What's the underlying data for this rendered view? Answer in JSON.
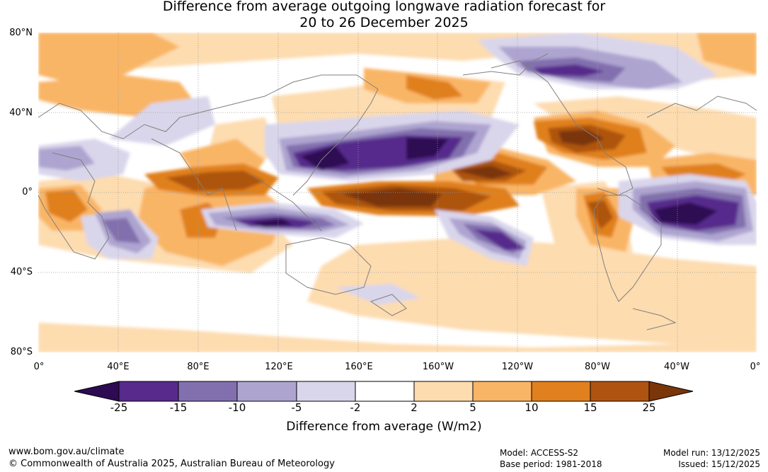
{
  "title": {
    "line1": "Difference from average outgoing longwave radiation forecast for",
    "line2": "20 to 26 December 2025"
  },
  "lat_labels": [
    "80°N",
    "40°N",
    "0°",
    "40°S",
    "80°S"
  ],
  "lon_labels": [
    "0°",
    "40°E",
    "80°E",
    "120°E",
    "160°E",
    "160°W",
    "120°W",
    "80°W",
    "40°W",
    "0°"
  ],
  "colorbar": {
    "ticks": [
      "-25",
      "-15",
      "-10",
      "-5",
      "-2",
      "2",
      "5",
      "10",
      "15",
      "25"
    ],
    "colors": [
      "#2d0a52",
      "#572a8c",
      "#8270ae",
      "#aea4d0",
      "#d9d6eb",
      "#ffffff",
      "#fddcb0",
      "#f9b566",
      "#e0801e",
      "#ae5410",
      "#7a3508"
    ],
    "label": "Difference from average (W/m2)"
  },
  "footer": {
    "url": "www.bom.gov.au/climate",
    "copyright": "© Commonwealth of Australia 2025, Australian Bureau of Meteorology",
    "model": "Model: ACCESS-S2",
    "base_period": "Base period: 1981-2018",
    "model_run": "Model run: 13/12/2025",
    "issued": "Issued: 15/12/2025"
  }
}
